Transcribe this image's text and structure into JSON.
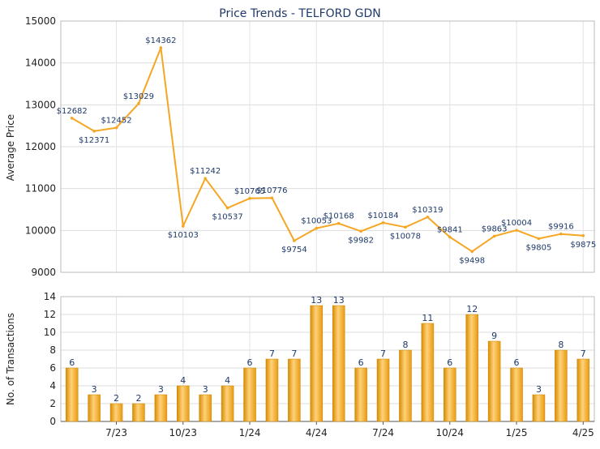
{
  "chart_data": [
    {
      "type": "line",
      "title": "Price Trends - TELFORD GDN",
      "xlabel": "",
      "ylabel": "Average Price",
      "ylim": [
        9000,
        15000
      ],
      "y_ticks": [
        "9000",
        "10000",
        "11000",
        "12000",
        "13000",
        "14000",
        "15000"
      ],
      "grid": true,
      "color": "#f5a623",
      "series": [
        {
          "values": [
            12682,
            12371,
            12452,
            13029,
            14362,
            10103,
            11242,
            10537,
            10765,
            10776,
            9754,
            10053,
            10168,
            9982,
            10184,
            10078,
            10319,
            9841,
            9498,
            9863,
            10004,
            9805,
            9916,
            9875
          ],
          "labels": [
            "$12682",
            "$12371",
            "$12452",
            "$13029",
            "$14362",
            "$10103",
            "$11242",
            "$10537",
            "$10765",
            "$10776",
            "$9754",
            "$10053",
            "$10168",
            "$9982",
            "$10184",
            "$10078",
            "$10319",
            "$9841",
            "$9498",
            "$9863",
            "$10004",
            "$9805",
            "$9916",
            "$9875"
          ]
        }
      ]
    },
    {
      "type": "bar",
      "xlabel": "",
      "ylabel": "No. of Transactions",
      "ylim": [
        0,
        14
      ],
      "y_ticks": [
        "0",
        "2",
        "4",
        "6",
        "8",
        "10",
        "12",
        "14"
      ],
      "x_tick_labels": [
        "7/23",
        "10/23",
        "1/24",
        "4/24",
        "7/24",
        "10/24",
        "1/25",
        "4/25"
      ],
      "grid": true,
      "color": "#f0a818",
      "values": [
        6,
        3,
        2,
        2,
        3,
        4,
        3,
        4,
        6,
        7,
        7,
        13,
        13,
        6,
        7,
        8,
        11,
        6,
        12,
        9,
        6,
        3,
        8,
        7
      ]
    }
  ]
}
